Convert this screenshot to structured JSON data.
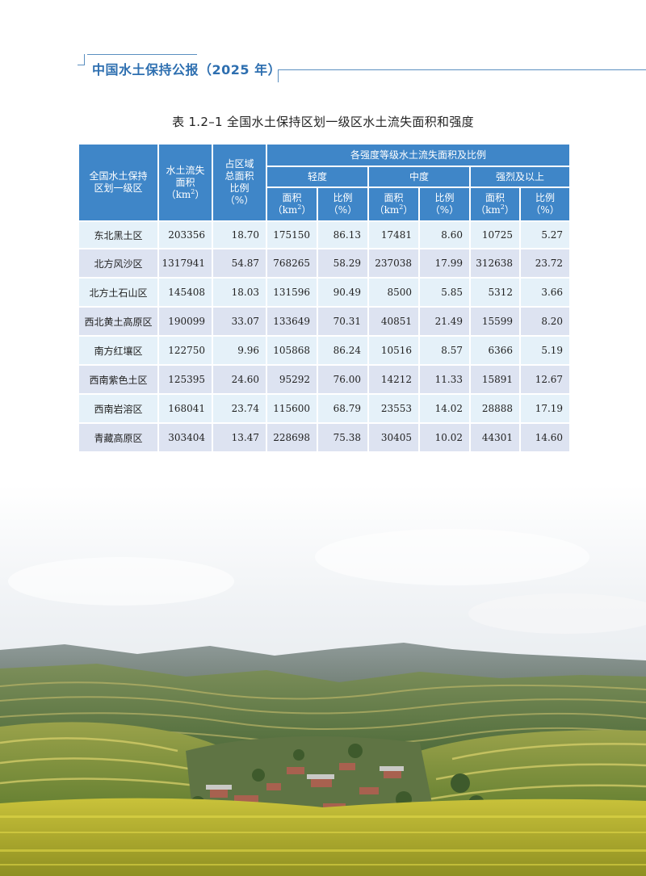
{
  "header": {
    "title": "中国水土保持公报（2025 年）"
  },
  "caption": "表 1.2–1  全国水土保持区划一级区水土流失面积和强度",
  "table": {
    "col_region": "全国水土保持区划一级区",
    "col_region_line1": "全国水土保持",
    "col_region_line2": "区划一级区",
    "col_area_line1": "水土流失",
    "col_area_line2": "面积",
    "col_area_unit_pre": "（km",
    "col_area_unit_sup": "2",
    "col_area_unit_post": "）",
    "col_ratio_line1": "占区域",
    "col_ratio_line2": "总面积",
    "col_ratio_line3": "比例",
    "col_ratio_unit": "（%）",
    "group_header": "各强度等级水土流失面积及比例",
    "levels": [
      "轻度",
      "中度",
      "强烈及以上"
    ],
    "sub_area": "面积",
    "sub_area_unit_pre": "（km",
    "sub_area_unit_sup": "2",
    "sub_area_unit_post": "）",
    "sub_ratio": "比例",
    "sub_ratio_unit": "（%）",
    "rows": [
      {
        "region": "东北黑土区",
        "area": "203356",
        "ratio": "18.70",
        "light_area": "175150",
        "light_ratio": "86.13",
        "mid_area": "17481",
        "mid_ratio": "8.60",
        "strong_area": "10725",
        "strong_ratio": "5.27"
      },
      {
        "region": "北方风沙区",
        "area": "1317941",
        "ratio": "54.87",
        "light_area": "768265",
        "light_ratio": "58.29",
        "mid_area": "237038",
        "mid_ratio": "17.99",
        "strong_area": "312638",
        "strong_ratio": "23.72"
      },
      {
        "region": "北方土石山区",
        "area": "145408",
        "ratio": "18.03",
        "light_area": "131596",
        "light_ratio": "90.49",
        "mid_area": "8500",
        "mid_ratio": "5.85",
        "strong_area": "5312",
        "strong_ratio": "3.66"
      },
      {
        "region": "西北黄土高原区",
        "area": "190099",
        "ratio": "33.07",
        "light_area": "133649",
        "light_ratio": "70.31",
        "mid_area": "40851",
        "mid_ratio": "21.49",
        "strong_area": "15599",
        "strong_ratio": "8.20"
      },
      {
        "region": "南方红壤区",
        "area": "122750",
        "ratio": "9.96",
        "light_area": "105868",
        "light_ratio": "86.24",
        "mid_area": "10516",
        "mid_ratio": "8.57",
        "strong_area": "6366",
        "strong_ratio": "5.19"
      },
      {
        "region": "西南紫色土区",
        "area": "125395",
        "ratio": "24.60",
        "light_area": "95292",
        "light_ratio": "76.00",
        "mid_area": "14212",
        "mid_ratio": "11.33",
        "strong_area": "15891",
        "strong_ratio": "12.67"
      },
      {
        "region": "西南岩溶区",
        "area": "168041",
        "ratio": "23.74",
        "light_area": "115600",
        "light_ratio": "68.79",
        "mid_area": "23553",
        "mid_ratio": "14.02",
        "strong_area": "28888",
        "strong_ratio": "17.19"
      },
      {
        "region": "青藏高原区",
        "area": "303404",
        "ratio": "13.47",
        "light_area": "228698",
        "light_ratio": "75.38",
        "mid_area": "30405",
        "mid_ratio": "10.02",
        "strong_area": "44301",
        "strong_ratio": "14.60"
      }
    ]
  },
  "colors": {
    "header_blue": "#3f86c8",
    "title_blue": "#2e6fb0",
    "row_light": "#e5f1f9",
    "row_lavender": "#dde3f1"
  },
  "photo": {
    "subject": "terraced-hills-landscape"
  }
}
